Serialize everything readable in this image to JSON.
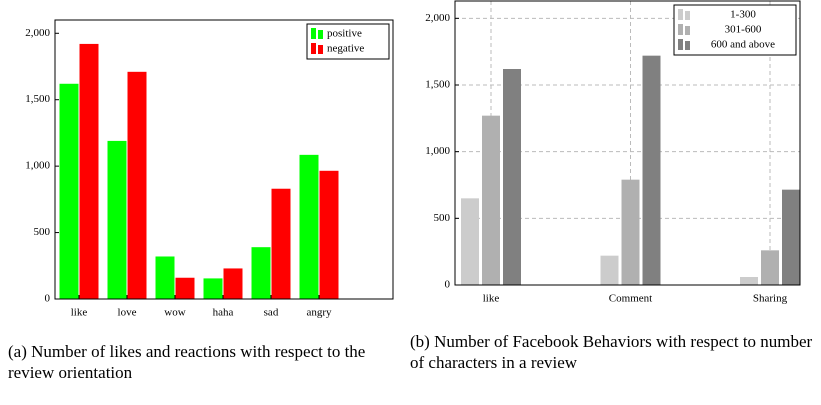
{
  "chart_data": [
    {
      "type": "bar",
      "caption": "(a) Number of likes and reactions with respect to the review orientation",
      "categories": [
        "like",
        "love",
        "wow",
        "haha",
        "sad",
        "angry"
      ],
      "series": [
        {
          "name": "positive",
          "color": "#00ff00",
          "values": [
            1620,
            1190,
            320,
            155,
            390,
            1085
          ]
        },
        {
          "name": "negative",
          "color": "#ff0000",
          "values": [
            1920,
            1710,
            160,
            230,
            830,
            965
          ]
        }
      ],
      "ylim": [
        0,
        2100
      ],
      "yticks": [
        0,
        500,
        {
          "value": 1000,
          "label": "1,000"
        },
        {
          "value": 1500,
          "label": "1,500"
        },
        {
          "value": 2000,
          "label": "2,000"
        }
      ],
      "grid": false,
      "legend": "top-right"
    },
    {
      "type": "bar",
      "caption": "(b) Number of Facebook Behaviors with respect to number of characters in a review",
      "categories": [
        "like",
        "Comment",
        "Sharing"
      ],
      "series": [
        {
          "name": "1-300",
          "color": "#cccccc",
          "values": [
            650,
            220,
            60
          ]
        },
        {
          "name": "301-600",
          "color": "#b0b0b0",
          "values": [
            1270,
            790,
            260
          ]
        },
        {
          "name": "600 and above",
          "color": "#808080",
          "values": [
            1620,
            1720,
            715
          ]
        }
      ],
      "ylim": [
        0,
        2130
      ],
      "yticks": [
        0,
        500,
        {
          "value": 1000,
          "label": "1,000"
        },
        {
          "value": 1500,
          "label": "1,500"
        },
        {
          "value": 2000,
          "label": "2,000"
        }
      ],
      "grid": true,
      "legend": "top-right"
    }
  ]
}
